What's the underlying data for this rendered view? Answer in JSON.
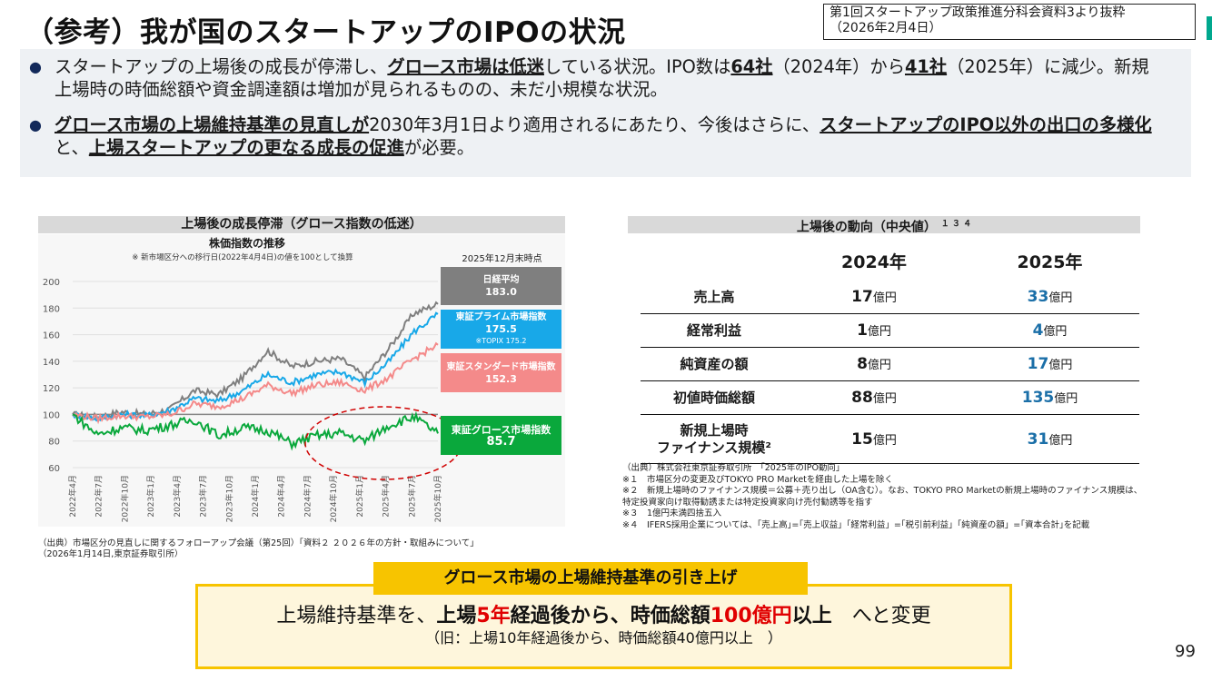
{
  "title": "（参考）我が国のスタートアップのIPOの状況",
  "source_box": {
    "line1": "第1回スタートアップ政策推進分科会資料3より抜粋",
    "line2": "（2026年2月4日）"
  },
  "summary": {
    "b1": [
      "スタートアップの上場後の成長が停滞し、",
      "グロース市場は低迷",
      "している状況。IPO数は",
      "64社",
      "（2024年）から",
      "41社",
      "（2025年）に減少。新規上場時の時価総額や資金調達額は増加が見られるものの、未だ小規模な状況。"
    ],
    "b2": [
      "グロース市場の上場維持基準の見直しが",
      "2030年3月1日より適用されるにあたり、今後はさらに、",
      "スタートアップのIPO以外の出口の多様化",
      "と、",
      "上場スタートアップの更なる成長の促進",
      "が必要。"
    ]
  },
  "chart": {
    "header": "上場後の成長停滞（グロース指数の低迷）",
    "subtitle": "株価指数の推移",
    "note": "※ 新市場区分への移行日(2022年4月4日)の値を100として換算",
    "as_of": "2025年12月末時点",
    "legend": [
      {
        "name": "日経平均",
        "value": "183.0",
        "color": "#7f7f7f"
      },
      {
        "name": "東証プライム市場指数",
        "value": "175.5",
        "extra": "※TOPIX 175.2",
        "color": "#18a8e8"
      },
      {
        "name": "東証スタンダード市場指数",
        "value": "152.3",
        "color": "#f48a8a"
      },
      {
        "name": "東証グロース市場指数",
        "value": "85.7",
        "color": "#0aa83c"
      }
    ],
    "source": [
      "（出典）市場区分の見直しに関するフォローアップ会議（第25回）「資料２ ２０２６年の方針・取組みについて」",
      "（2026年1月14日,東京証券取引所）"
    ]
  },
  "chart_data": {
    "type": "line",
    "ylim": [
      60,
      200
    ],
    "yticks": [
      60,
      80,
      100,
      120,
      140,
      160,
      180,
      200
    ],
    "x_labels": [
      "2022年4月",
      "2022年7月",
      "2022年10月",
      "2023年1月",
      "2023年4月",
      "2023年7月",
      "2023年10月",
      "2024年1月",
      "2024年4月",
      "2024年7月",
      "2024年10月",
      "2025年1月",
      "2025年4月",
      "2025年7月",
      "2025年10月"
    ],
    "series": [
      {
        "name": "日経平均",
        "color": "#7f7f7f",
        "values": [
          100,
          98,
          102,
          100,
          104,
          118,
          115,
          128,
          148,
          136,
          140,
          142,
          128,
          150,
          176,
          183
        ]
      },
      {
        "name": "東証プライム市場指数",
        "color": "#18a8e8",
        "values": [
          100,
          97,
          100,
          99,
          103,
          112,
          110,
          118,
          130,
          124,
          130,
          132,
          124,
          140,
          162,
          175.5
        ]
      },
      {
        "name": "東証スタンダード市場指数",
        "color": "#f48a8a",
        "values": [
          100,
          97,
          99,
          98,
          100,
          108,
          106,
          112,
          122,
          116,
          122,
          124,
          118,
          128,
          142,
          152.3
        ]
      },
      {
        "name": "東証グロース市場指数",
        "color": "#0aa83c",
        "values": [
          100,
          85,
          90,
          88,
          92,
          96,
          84,
          90,
          88,
          78,
          84,
          86,
          80,
          92,
          98,
          85.7
        ]
      }
    ]
  },
  "table": {
    "header": "上場後の動向（中央値）",
    "header_sup": "１ ３ ４",
    "col1": "2024年",
    "col2": "2025年",
    "rows": [
      {
        "label": "売上高",
        "v1": "17",
        "v2": "33",
        "unit": "億円"
      },
      {
        "label": "経常利益",
        "v1": "1",
        "v2": "4",
        "unit": "億円"
      },
      {
        "label": "純資産の額",
        "v1": "8",
        "v2": "17",
        "unit": "億円"
      },
      {
        "label": "初値時価総額",
        "v1": "88",
        "v2": "135",
        "unit": "億円"
      },
      {
        "label1": "新規上場時",
        "label2": "ファイナンス規模²",
        "v1": "15",
        "v2": "31",
        "unit": "億円"
      }
    ],
    "notes": [
      "（出典）株式会社東京証券取引所　「2025年のIPO動向」",
      "※１　市場区分の変更及びTOKYO PRO Marketを経由した上場を除く",
      "※２　新規上場時のファイナンス規模＝公募＋売り出し（OA含む）。なお、TOKYO PRO Marketの新規上場時のファイナンス規模は、",
      "特定投資家向け取得勧誘または特定投資家向け売付勧誘等を指す",
      "※３　1億円未満四捨五入",
      "※４　IFERS採用企業については、｢売上高｣=｢売上収益｣「経常利益」=｢税引前利益｣「純資産の額」=｢資本合計｣を記載"
    ]
  },
  "bottom": {
    "label": "グロース市場の上場維持基準の引き上げ",
    "main": [
      "上場維持基準を、",
      "上場",
      "5年",
      "経過後から、時価総額",
      "100億円",
      "以上",
      "　へと変更"
    ],
    "old": "（旧：上場10年経過後から、時価総額40億円以上　）"
  },
  "page_number": "99"
}
